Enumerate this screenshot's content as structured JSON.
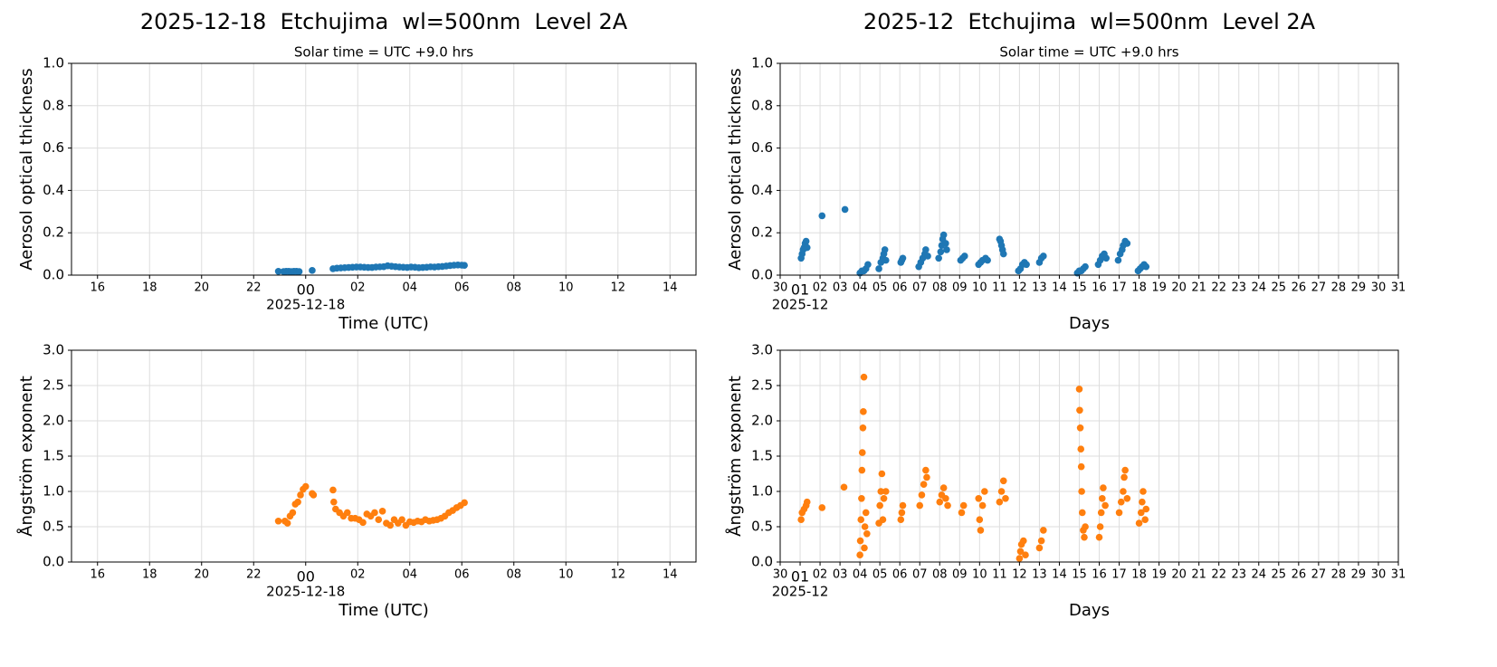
{
  "chart_data": [
    {
      "type": "scatter",
      "title": "2025-12-18  Etchujima  wl=500nm  Level 2A",
      "subtitle": "Solar time = UTC +9.0 hrs",
      "xlabel": "Time (UTC)",
      "ylabel": "Aerosol optical thickness",
      "color": "#1f77b4",
      "grid": true,
      "xlim": [
        -9,
        15
      ],
      "xticks": [
        {
          "value": -8,
          "label": "16"
        },
        {
          "value": -6,
          "label": "18"
        },
        {
          "value": -4,
          "label": "20"
        },
        {
          "value": -2,
          "label": "22"
        },
        {
          "value": 0,
          "label": "00",
          "sublabel": "2025-12-18"
        },
        {
          "value": 2,
          "label": "02"
        },
        {
          "value": 4,
          "label": "04"
        },
        {
          "value": 6,
          "label": "06"
        },
        {
          "value": 8,
          "label": "08"
        },
        10,
        12,
        14
      ],
      "ylim": [
        0,
        1
      ],
      "yticks": [
        {
          "value": 0,
          "label": "0.0"
        },
        0.2,
        0.4,
        0.6,
        0.8,
        {
          "value": 1,
          "label": "1.0"
        }
      ],
      "x": [
        -1.05,
        -0.85,
        -0.75,
        -0.65,
        -0.55,
        -0.45,
        -0.35,
        -0.25,
        0.25,
        1.05,
        1.2,
        1.35,
        1.5,
        1.65,
        1.8,
        1.95,
        2.1,
        2.25,
        2.4,
        2.55,
        2.7,
        2.85,
        3.0,
        3.15,
        3.3,
        3.45,
        3.6,
        3.75,
        3.9,
        4.05,
        4.2,
        4.35,
        4.5,
        4.65,
        4.8,
        4.95,
        5.1,
        5.25,
        5.4,
        5.55,
        5.7,
        5.85,
        6.0,
        6.1
      ],
      "values": [
        0.018,
        0.017,
        0.018,
        0.018,
        0.017,
        0.018,
        0.018,
        0.017,
        0.022,
        0.03,
        0.033,
        0.034,
        0.035,
        0.036,
        0.037,
        0.038,
        0.038,
        0.037,
        0.036,
        0.036,
        0.038,
        0.039,
        0.04,
        0.044,
        0.042,
        0.04,
        0.038,
        0.037,
        0.036,
        0.038,
        0.037,
        0.035,
        0.036,
        0.037,
        0.039,
        0.038,
        0.04,
        0.041,
        0.043,
        0.045,
        0.047,
        0.048,
        0.047,
        0.046
      ]
    },
    {
      "type": "scatter",
      "title": "2025-12  Etchujima  wl=500nm  Level 2A",
      "subtitle": "Solar time = UTC +9.0 hrs",
      "xlabel": "Days",
      "ylabel": "Aerosol optical thickness",
      "color": "#1f77b4",
      "grid": true,
      "xlim": [
        0,
        31
      ],
      "xticks": [
        {
          "value": 0,
          "label": "30"
        },
        {
          "value": 1,
          "label": "01",
          "sublabel": "2025-12"
        },
        {
          "value": 2,
          "label": "02"
        },
        {
          "value": 3,
          "label": "03"
        },
        {
          "value": 4,
          "label": "04"
        },
        {
          "value": 5,
          "label": "05"
        },
        {
          "value": 6,
          "label": "06"
        },
        {
          "value": 7,
          "label": "07"
        },
        {
          "value": 8,
          "label": "08"
        },
        {
          "value": 9,
          "label": "09"
        },
        10,
        11,
        12,
        13,
        14,
        15,
        16,
        17,
        18,
        19,
        20,
        21,
        22,
        23,
        24,
        25,
        26,
        27,
        28,
        29,
        30,
        31
      ],
      "ylim": [
        0,
        1
      ],
      "yticks": [
        {
          "value": 0,
          "label": "0.0"
        },
        0.2,
        0.4,
        0.6,
        0.8,
        {
          "value": 1,
          "label": "1.0"
        }
      ],
      "x": [
        1.05,
        1.1,
        1.15,
        1.2,
        1.25,
        1.3,
        1.35,
        2.1,
        3.25,
        4.0,
        4.1,
        4.2,
        4.3,
        4.4,
        4.95,
        5.05,
        5.15,
        5.2,
        5.25,
        5.3,
        6.05,
        6.1,
        6.15,
        6.95,
        7.05,
        7.15,
        7.25,
        7.3,
        7.4,
        7.95,
        8.05,
        8.1,
        8.15,
        8.2,
        8.3,
        8.35,
        9.05,
        9.15,
        9.25,
        9.95,
        10.05,
        10.15,
        10.3,
        10.4,
        11.0,
        11.05,
        11.1,
        11.15,
        11.2,
        11.95,
        12.05,
        12.15,
        12.25,
        12.35,
        13.0,
        13.1,
        13.2,
        14.9,
        15.0,
        15.1,
        15.2,
        15.3,
        15.95,
        16.05,
        16.15,
        16.25,
        16.35,
        16.95,
        17.05,
        17.15,
        17.2,
        17.3,
        17.4,
        17.95,
        18.05,
        18.15,
        18.25,
        18.35
      ],
      "values": [
        0.08,
        0.1,
        0.12,
        0.13,
        0.15,
        0.16,
        0.13,
        0.28,
        0.31,
        0.01,
        0.02,
        0.02,
        0.03,
        0.05,
        0.03,
        0.06,
        0.08,
        0.1,
        0.12,
        0.07,
        0.06,
        0.07,
        0.08,
        0.04,
        0.06,
        0.08,
        0.1,
        0.12,
        0.09,
        0.08,
        0.11,
        0.14,
        0.17,
        0.19,
        0.15,
        0.12,
        0.07,
        0.08,
        0.09,
        0.05,
        0.06,
        0.07,
        0.08,
        0.07,
        0.17,
        0.16,
        0.14,
        0.12,
        0.1,
        0.02,
        0.03,
        0.05,
        0.06,
        0.05,
        0.06,
        0.08,
        0.09,
        0.01,
        0.02,
        0.02,
        0.03,
        0.04,
        0.05,
        0.07,
        0.09,
        0.1,
        0.08,
        0.07,
        0.1,
        0.12,
        0.14,
        0.16,
        0.15,
        0.02,
        0.03,
        0.04,
        0.05,
        0.04
      ]
    },
    {
      "type": "scatter",
      "xlabel": "Time (UTC)",
      "ylabel": "Ångström exponent",
      "color": "#ff7f0e",
      "grid": true,
      "xlim": [
        -9,
        15
      ],
      "xticks": [
        {
          "value": -8,
          "label": "16"
        },
        {
          "value": -6,
          "label": "18"
        },
        {
          "value": -4,
          "label": "20"
        },
        {
          "value": -2,
          "label": "22"
        },
        {
          "value": 0,
          "label": "00",
          "sublabel": "2025-12-18"
        },
        {
          "value": 2,
          "label": "02"
        },
        {
          "value": 4,
          "label": "04"
        },
        {
          "value": 6,
          "label": "06"
        },
        {
          "value": 8,
          "label": "08"
        },
        10,
        12,
        14
      ],
      "ylim": [
        0,
        3
      ],
      "yticks": [
        {
          "value": 0,
          "label": "0.0"
        },
        0.5,
        {
          "value": 1,
          "label": "1.0"
        },
        1.5,
        {
          "value": 2,
          "label": "2.0"
        },
        2.5,
        {
          "value": 3,
          "label": "3.0"
        }
      ],
      "x": [
        -1.05,
        -0.8,
        -0.7,
        -0.6,
        -0.5,
        -0.4,
        -0.3,
        -0.2,
        -0.1,
        0.0,
        0.25,
        0.3,
        1.05,
        1.08,
        1.15,
        1.3,
        1.45,
        1.6,
        1.75,
        1.9,
        2.05,
        2.2,
        2.35,
        2.5,
        2.65,
        2.8,
        2.95,
        3.1,
        3.25,
        3.4,
        3.55,
        3.7,
        3.85,
        4.0,
        4.15,
        4.3,
        4.45,
        4.6,
        4.75,
        4.9,
        5.05,
        5.2,
        5.35,
        5.5,
        5.65,
        5.8,
        5.95,
        6.1
      ],
      "values": [
        0.58,
        0.58,
        0.55,
        0.65,
        0.7,
        0.82,
        0.85,
        0.95,
        1.03,
        1.07,
        0.97,
        0.95,
        1.02,
        0.85,
        0.75,
        0.7,
        0.65,
        0.7,
        0.62,
        0.62,
        0.6,
        0.56,
        0.68,
        0.65,
        0.7,
        0.6,
        0.72,
        0.55,
        0.52,
        0.6,
        0.55,
        0.6,
        0.52,
        0.57,
        0.56,
        0.58,
        0.57,
        0.6,
        0.58,
        0.59,
        0.6,
        0.62,
        0.65,
        0.7,
        0.73,
        0.77,
        0.8,
        0.84
      ]
    },
    {
      "type": "scatter",
      "xlabel": "Days",
      "ylabel": "Ångström exponent",
      "color": "#ff7f0e",
      "grid": true,
      "xlim": [
        0,
        31
      ],
      "xticks": [
        {
          "value": 0,
          "label": "30"
        },
        {
          "value": 1,
          "label": "01",
          "sublabel": "2025-12"
        },
        {
          "value": 2,
          "label": "02"
        },
        {
          "value": 3,
          "label": "03"
        },
        {
          "value": 4,
          "label": "04"
        },
        {
          "value": 5,
          "label": "05"
        },
        {
          "value": 6,
          "label": "06"
        },
        {
          "value": 7,
          "label": "07"
        },
        {
          "value": 8,
          "label": "08"
        },
        {
          "value": 9,
          "label": "09"
        },
        10,
        11,
        12,
        13,
        14,
        15,
        16,
        17,
        18,
        19,
        20,
        21,
        22,
        23,
        24,
        25,
        26,
        27,
        28,
        29,
        30,
        31
      ],
      "ylim": [
        0,
        3
      ],
      "yticks": [
        {
          "value": 0,
          "label": "0.0"
        },
        0.5,
        {
          "value": 1,
          "label": "1.0"
        },
        1.5,
        {
          "value": 2,
          "label": "2.0"
        },
        2.5,
        {
          "value": 3,
          "label": "3.0"
        }
      ],
      "x": [
        1.05,
        1.1,
        1.2,
        1.3,
        1.35,
        2.1,
        3.2,
        4.0,
        4.02,
        4.05,
        4.08,
        4.1,
        4.12,
        4.15,
        4.17,
        4.2,
        4.22,
        4.25,
        4.3,
        4.35,
        4.95,
        5.0,
        5.05,
        5.1,
        5.15,
        5.2,
        5.3,
        6.05,
        6.1,
        6.15,
        7.0,
        7.1,
        7.2,
        7.3,
        7.35,
        8.0,
        8.1,
        8.2,
        8.3,
        8.4,
        9.1,
        9.2,
        9.95,
        10.0,
        10.05,
        10.15,
        10.25,
        11.0,
        11.1,
        11.2,
        11.3,
        12.0,
        12.05,
        12.1,
        12.2,
        12.3,
        13.0,
        13.1,
        13.2,
        15.0,
        15.02,
        15.05,
        15.08,
        15.1,
        15.12,
        15.15,
        15.2,
        15.25,
        15.3,
        16.0,
        16.05,
        16.1,
        16.15,
        16.2,
        16.3,
        17.0,
        17.1,
        17.2,
        17.25,
        17.3,
        17.4,
        18.0,
        18.1,
        18.15,
        18.2,
        18.3,
        18.35
      ],
      "values": [
        0.6,
        0.7,
        0.75,
        0.8,
        0.85,
        0.77,
        1.06,
        0.1,
        0.3,
        0.6,
        0.9,
        1.3,
        1.55,
        1.9,
        2.13,
        2.62,
        0.2,
        0.5,
        0.7,
        0.4,
        0.55,
        0.8,
        1.0,
        1.25,
        0.6,
        0.9,
        1.0,
        0.6,
        0.7,
        0.8,
        0.8,
        0.95,
        1.1,
        1.3,
        1.2,
        0.85,
        0.95,
        1.05,
        0.9,
        0.8,
        0.7,
        0.8,
        0.9,
        0.6,
        0.45,
        0.8,
        1.0,
        0.85,
        1.0,
        1.15,
        0.9,
        0.05,
        0.15,
        0.25,
        0.3,
        0.1,
        0.2,
        0.3,
        0.45,
        2.45,
        2.15,
        1.9,
        1.6,
        1.35,
        1.0,
        0.7,
        0.45,
        0.35,
        0.5,
        0.35,
        0.5,
        0.7,
        0.9,
        1.05,
        0.8,
        0.7,
        0.85,
        1.0,
        1.2,
        1.3,
        0.9,
        0.55,
        0.7,
        0.85,
        1.0,
        0.6,
        0.75
      ]
    }
  ]
}
